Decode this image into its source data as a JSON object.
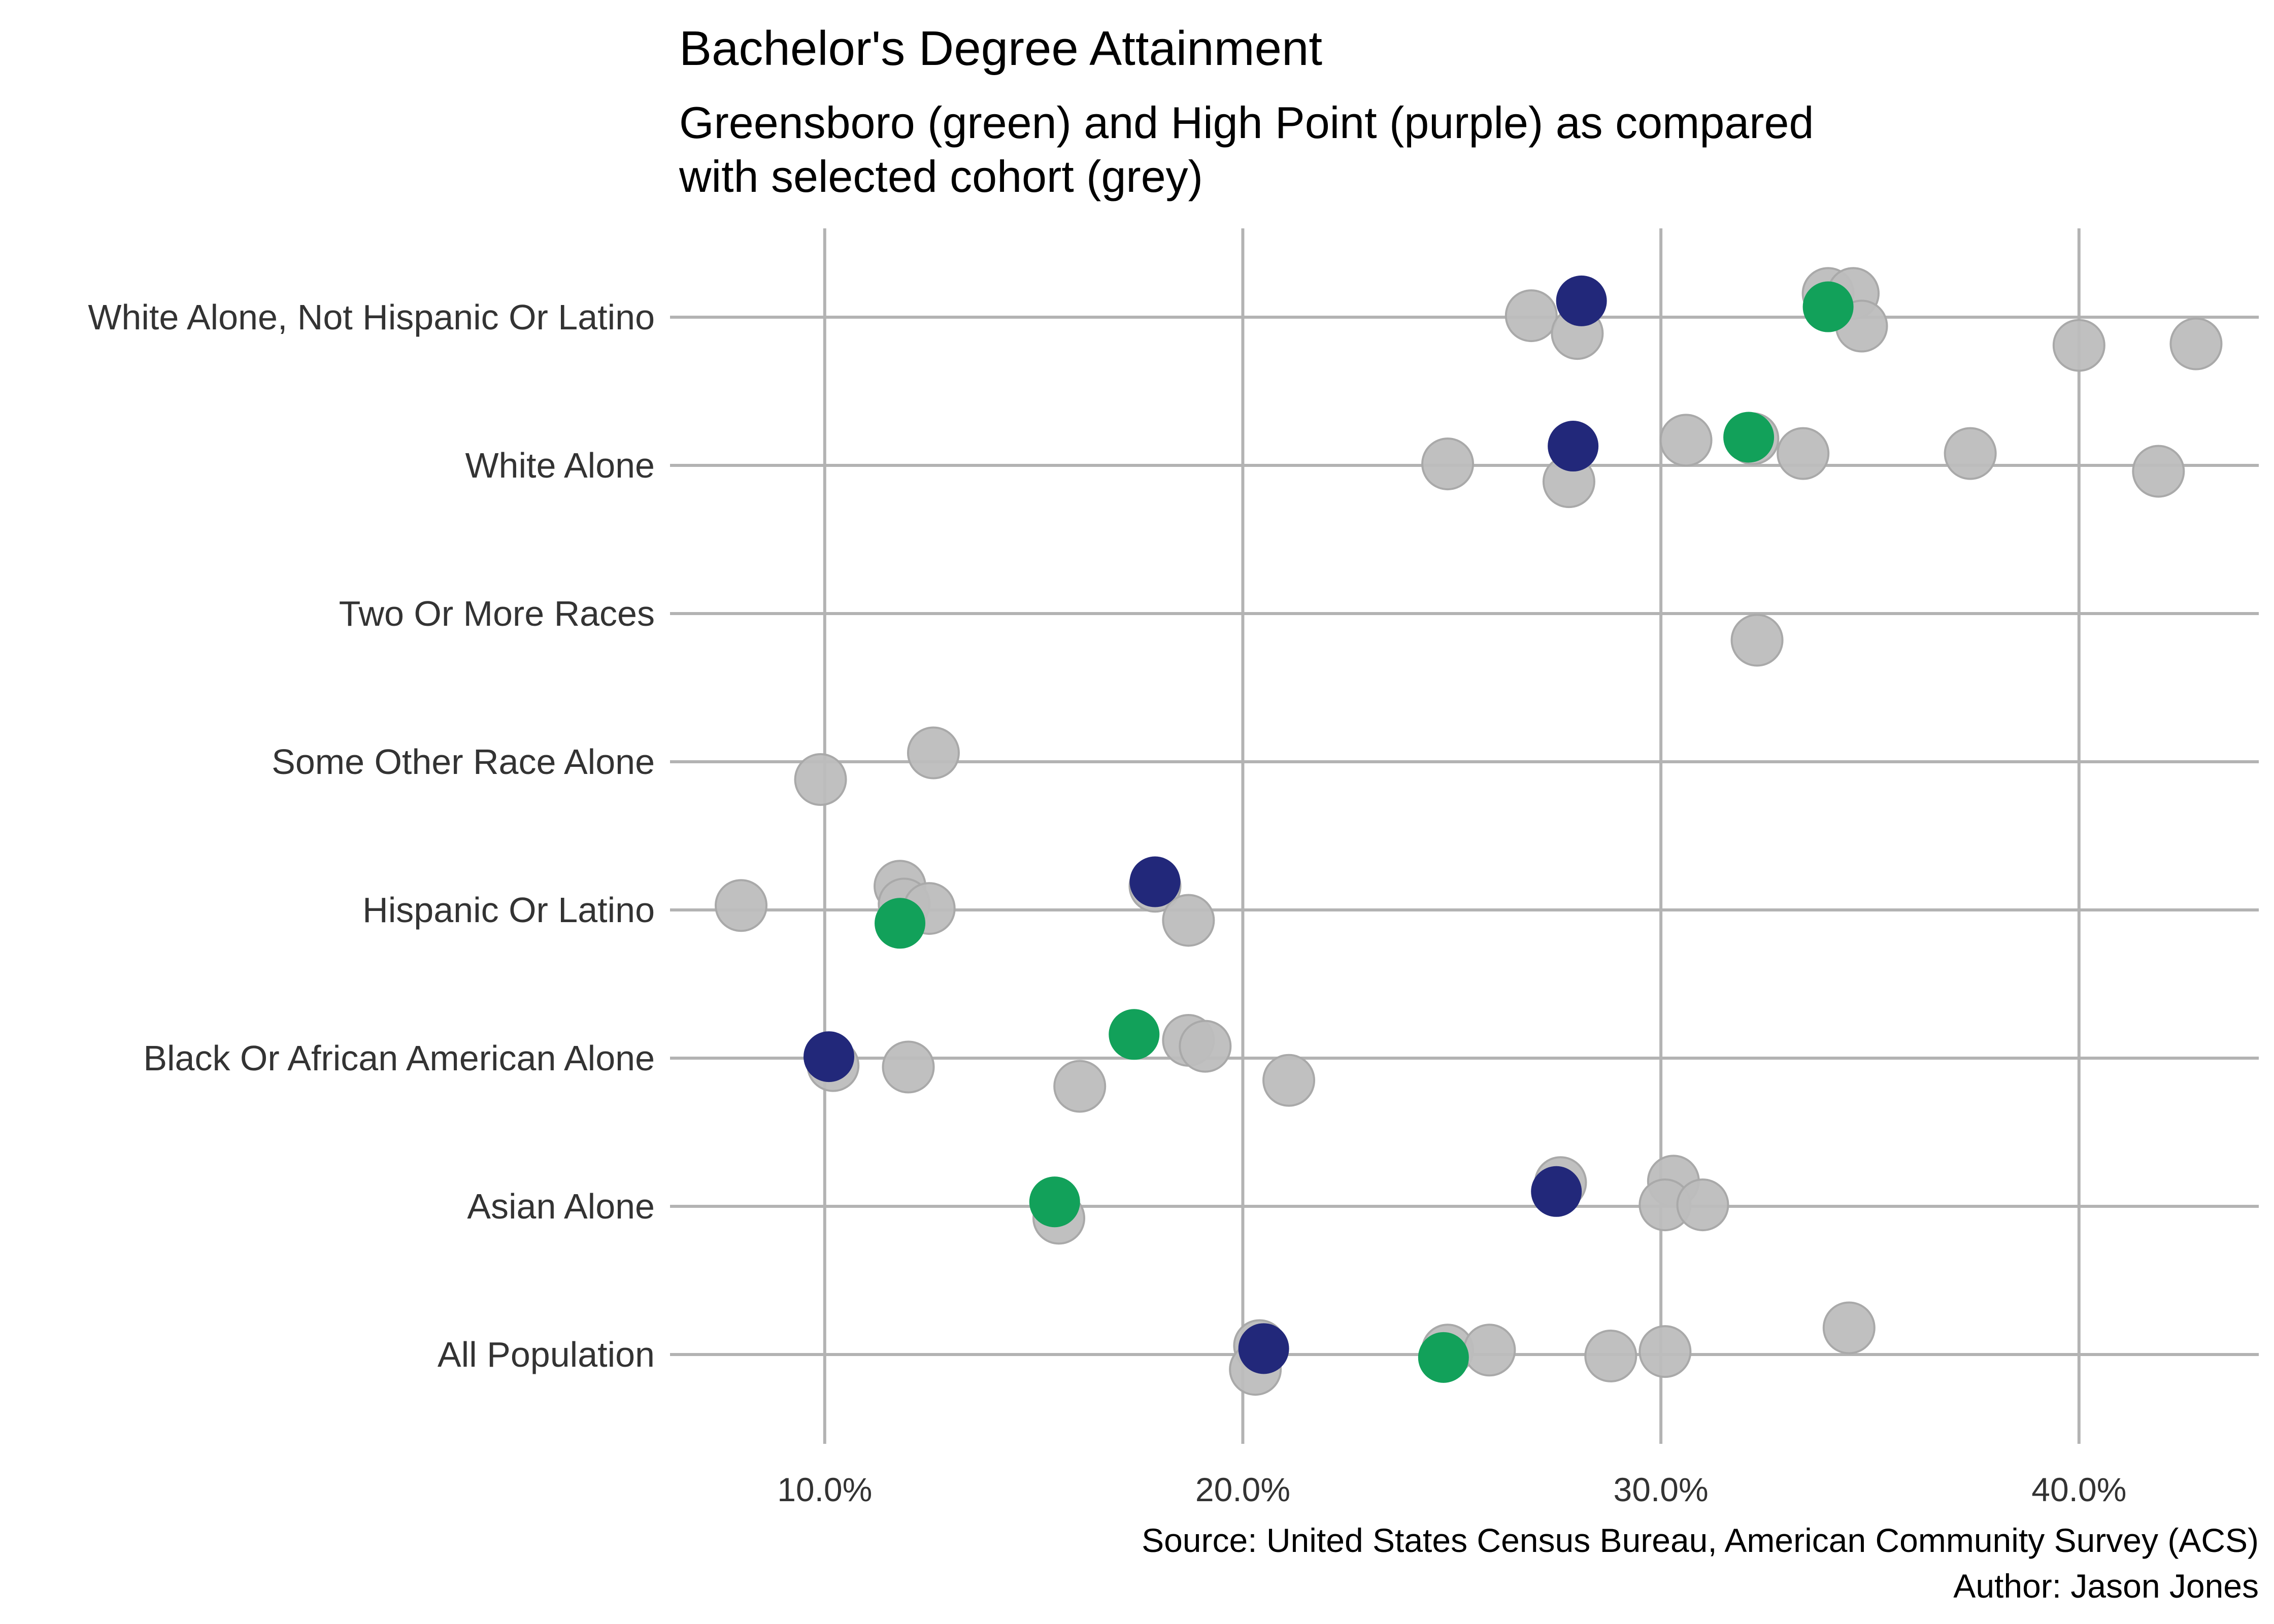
{
  "chart_data": {
    "type": "scatter",
    "title": "Bachelor's Degree Attainment",
    "subtitle": [
      "Greensboro (green) and High Point (purple) as compared",
      "with selected cohort (grey)"
    ],
    "caption": [
      "Source: United States Census Bureau, American Community Survey (ACS)",
      "Author: Jason Jones"
    ],
    "xlabel": "",
    "ylabel": "",
    "xlim": [
      6.3,
      44.3
    ],
    "x_ticks": [
      10,
      20,
      30,
      40
    ],
    "x_tick_labels": [
      "10.0%",
      "20.0%",
      "30.0%",
      "40.0%"
    ],
    "categories": [
      "All Population",
      "Asian Alone",
      "Black Or African American Alone",
      "Hispanic Or Latino",
      "Some Other Race Alone",
      "Two Or More Races",
      "White Alone",
      "White Alone, Not Hispanic Or Latino"
    ],
    "grid": true,
    "colors": {
      "cohort": "#bdbdbd",
      "greensboro": "#12a15a",
      "high_point": "#22287a"
    },
    "series": [
      {
        "key": "cohort",
        "color": "#bdbdbd",
        "points": [
          {
            "category": "All Population",
            "value": 20.4,
            "jitter": 0.06
          },
          {
            "category": "All Population",
            "value": 20.3,
            "jitter": -0.1
          },
          {
            "category": "All Population",
            "value": 24.9,
            "jitter": 0.03
          },
          {
            "category": "All Population",
            "value": 25.9,
            "jitter": 0.03
          },
          {
            "category": "All Population",
            "value": 28.8,
            "jitter": -0.01
          },
          {
            "category": "All Population",
            "value": 30.1,
            "jitter": 0.02
          },
          {
            "category": "All Population",
            "value": 34.5,
            "jitter": 0.18
          },
          {
            "category": "Asian Alone",
            "value": 15.6,
            "jitter": -0.08
          },
          {
            "category": "Asian Alone",
            "value": 27.6,
            "jitter": 0.16
          },
          {
            "category": "Asian Alone",
            "value": 30.3,
            "jitter": 0.17
          },
          {
            "category": "Asian Alone",
            "value": 30.1,
            "jitter": 0.01
          },
          {
            "category": "Asian Alone",
            "value": 31.0,
            "jitter": 0.01
          },
          {
            "category": "Black Or African American Alone",
            "value": 10.2,
            "jitter": -0.05
          },
          {
            "category": "Black Or African American Alone",
            "value": 12.0,
            "jitter": -0.06
          },
          {
            "category": "Black Or African American Alone",
            "value": 16.1,
            "jitter": -0.19
          },
          {
            "category": "Black Or African American Alone",
            "value": 18.7,
            "jitter": 0.12
          },
          {
            "category": "Black Or African American Alone",
            "value": 19.1,
            "jitter": 0.08
          },
          {
            "category": "Black Or African American Alone",
            "value": 21.1,
            "jitter": -0.15
          },
          {
            "category": "Hispanic Or Latino",
            "value": 8.0,
            "jitter": 0.03
          },
          {
            "category": "Hispanic Or Latino",
            "value": 11.8,
            "jitter": 0.16
          },
          {
            "category": "Hispanic Or Latino",
            "value": 11.9,
            "jitter": 0.04
          },
          {
            "category": "Hispanic Or Latino",
            "value": 12.5,
            "jitter": 0.01
          },
          {
            "category": "Hispanic Or Latino",
            "value": 17.9,
            "jitter": 0.16
          },
          {
            "category": "Hispanic Or Latino",
            "value": 18.7,
            "jitter": -0.07
          },
          {
            "category": "Some Other Race Alone",
            "value": 9.9,
            "jitter": -0.12
          },
          {
            "category": "Some Other Race Alone",
            "value": 12.6,
            "jitter": 0.06
          },
          {
            "category": "Two Or More Races",
            "value": 32.3,
            "jitter": -0.18
          },
          {
            "category": "White Alone",
            "value": 24.9,
            "jitter": 0.01
          },
          {
            "category": "White Alone",
            "value": 27.8,
            "jitter": -0.11
          },
          {
            "category": "White Alone",
            "value": 30.6,
            "jitter": 0.17
          },
          {
            "category": "White Alone",
            "value": 32.2,
            "jitter": 0.18
          },
          {
            "category": "White Alone",
            "value": 33.4,
            "jitter": 0.08
          },
          {
            "category": "White Alone",
            "value": 37.4,
            "jitter": 0.08
          },
          {
            "category": "White Alone",
            "value": 41.9,
            "jitter": -0.04
          },
          {
            "category": "White Alone, Not Hispanic Or Latino",
            "value": 26.9,
            "jitter": 0.01
          },
          {
            "category": "White Alone, Not Hispanic Or Latino",
            "value": 28.0,
            "jitter": -0.11
          },
          {
            "category": "White Alone, Not Hispanic Or Latino",
            "value": 34.0,
            "jitter": 0.16
          },
          {
            "category": "White Alone, Not Hispanic Or Latino",
            "value": 34.6,
            "jitter": 0.16
          },
          {
            "category": "White Alone, Not Hispanic Or Latino",
            "value": 34.8,
            "jitter": -0.06
          },
          {
            "category": "White Alone, Not Hispanic Or Latino",
            "value": 40.0,
            "jitter": -0.19
          },
          {
            "category": "White Alone, Not Hispanic Or Latino",
            "value": 42.8,
            "jitter": -0.18
          }
        ]
      },
      {
        "key": "greensboro",
        "color": "#12a15a",
        "points": [
          {
            "category": "All Population",
            "value": 24.8,
            "jitter": -0.02
          },
          {
            "category": "Asian Alone",
            "value": 15.5,
            "jitter": 0.03
          },
          {
            "category": "Black Or African American Alone",
            "value": 17.4,
            "jitter": 0.16
          },
          {
            "category": "Hispanic Or Latino",
            "value": 11.8,
            "jitter": -0.09
          },
          {
            "category": "White Alone",
            "value": 32.1,
            "jitter": 0.19
          },
          {
            "category": "White Alone, Not Hispanic Or Latino",
            "value": 34.0,
            "jitter": 0.07
          }
        ]
      },
      {
        "key": "high_point",
        "color": "#22287a",
        "points": [
          {
            "category": "All Population",
            "value": 20.5,
            "jitter": 0.04
          },
          {
            "category": "Asian Alone",
            "value": 27.5,
            "jitter": 0.1
          },
          {
            "category": "Black Or African American Alone",
            "value": 10.1,
            "jitter": 0.01
          },
          {
            "category": "Hispanic Or Latino",
            "value": 17.9,
            "jitter": 0.19
          },
          {
            "category": "White Alone",
            "value": 27.9,
            "jitter": 0.13
          },
          {
            "category": "White Alone, Not Hispanic Or Latino",
            "value": 28.1,
            "jitter": 0.11
          }
        ]
      }
    ]
  }
}
